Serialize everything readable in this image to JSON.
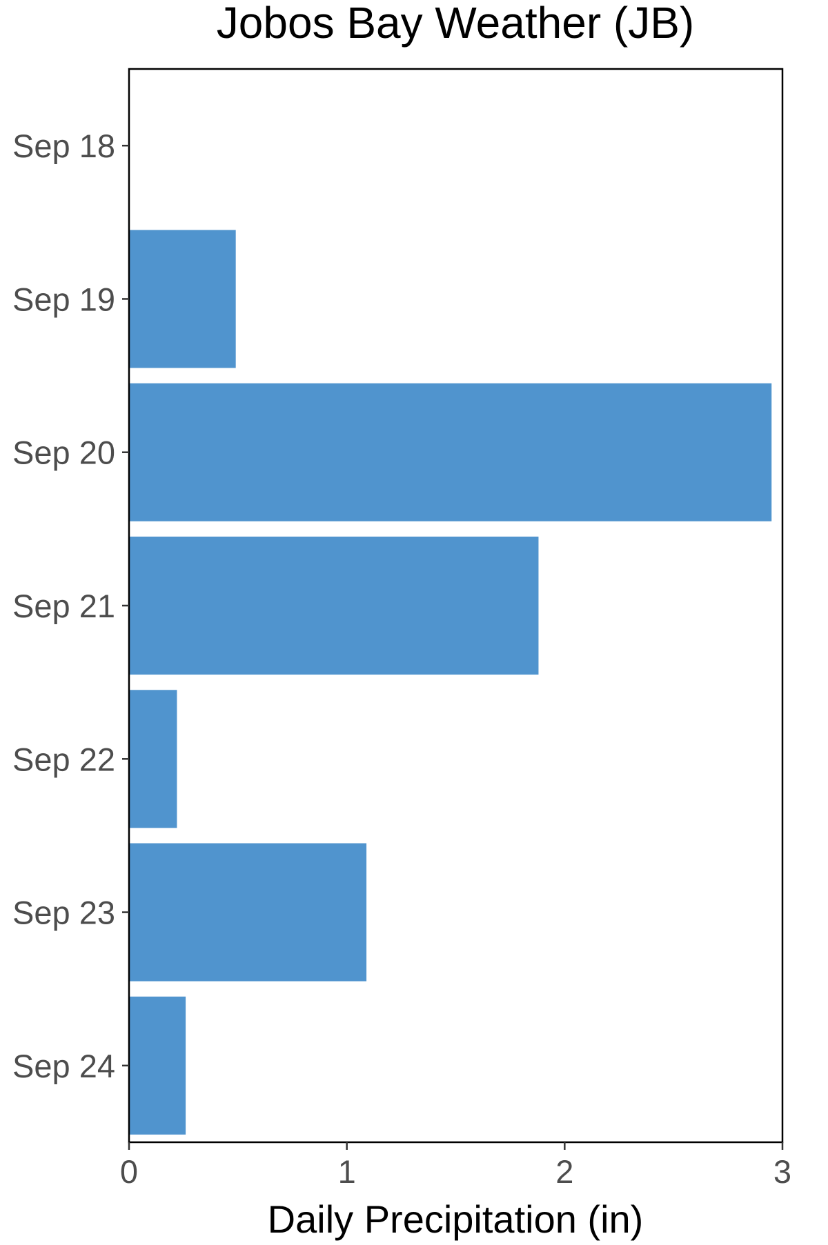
{
  "chart_data": {
    "type": "bar",
    "orientation": "horizontal",
    "title": "Jobos Bay Weather (JB)",
    "xlabel": "Daily Precipitation (in)",
    "ylabel": "",
    "categories": [
      "Sep 18",
      "Sep 19",
      "Sep 20",
      "Sep 21",
      "Sep 22",
      "Sep 23",
      "Sep 24"
    ],
    "values": [
      0,
      0.49,
      2.95,
      1.88,
      0.22,
      1.09,
      0.26
    ],
    "xlim": [
      0,
      3
    ],
    "x_ticks": [
      0,
      1,
      2,
      3
    ],
    "grid": false,
    "legend": "none",
    "bar_color": "#5094CE"
  }
}
